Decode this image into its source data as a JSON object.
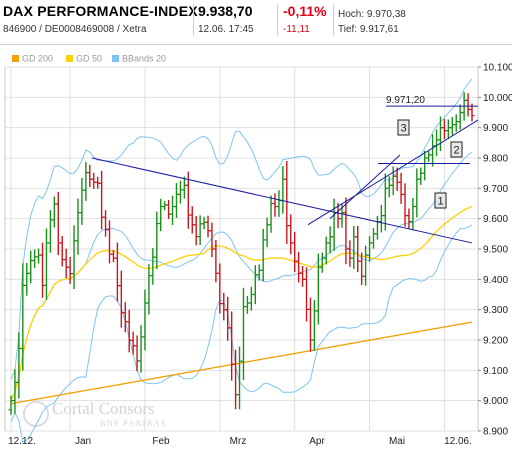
{
  "header": {
    "title": "DAX PERFORMANCE-INDEX",
    "subtitle": "846900 / DE0008469008 / Xetra",
    "price": "9.938,70",
    "datetime": "12.06. 17:45",
    "change_pct": "-0,11%",
    "change_abs": "-11,11",
    "high": "Hoch: 9.970,38",
    "low": "Tief: 9.917,61"
  },
  "legend": [
    {
      "label": "GD 200",
      "color": "#f0a000"
    },
    {
      "label": "GD 50",
      "color": "#ffd000"
    },
    {
      "label": "BBands 20",
      "color": "#7fc4f0"
    }
  ],
  "watermark": {
    "brand": "Cortal Consors",
    "sub": "BNP PARIBAS"
  },
  "chart_data": {
    "type": "ohlc",
    "ylim": [
      8900,
      10100
    ],
    "yticks": [
      "10.100",
      "10.000",
      "9.900",
      "9.800",
      "9.700",
      "9.600",
      "9.500",
      "9.400",
      "9.300",
      "9.200",
      "9.100",
      "9.000",
      "8.900"
    ],
    "xticks": [
      "12.12.",
      "Jan",
      "Feb",
      "Mrz",
      "Apr",
      "Mai",
      "12.06."
    ],
    "colors": {
      "up": "#1a8f1a",
      "down": "#c8161d",
      "gd200": "#f0a000",
      "gd50": "#ffd000",
      "bband": "#7fc4f0",
      "trend": "#1a1aa0"
    },
    "annotations": [
      "3",
      "2",
      "1"
    ],
    "level_label": "9.971,20",
    "closes": [
      9000,
      9060,
      9172,
      9380,
      9420,
      9462,
      9474,
      9480,
      9380,
      9520,
      9596,
      9648,
      9520,
      9465,
      9440,
      9419,
      9527,
      9620,
      9694,
      9752,
      9730,
      9720,
      9717,
      9605,
      9564,
      9483,
      9470,
      9379,
      9290,
      9260,
      9199,
      9181,
      9131,
      9210,
      9322,
      9412,
      9473,
      9584,
      9640,
      9645,
      9615,
      9640,
      9680,
      9695,
      9710,
      9612,
      9580,
      9541,
      9583,
      9588,
      9560,
      9500,
      9420,
      9320,
      9300,
      9240,
      9120,
      9020,
      9130,
      9310,
      9322,
      9350,
      9415,
      9430,
      9530,
      9580,
      9650,
      9640,
      9660,
      9730,
      9577,
      9520,
      9460,
      9420,
      9400,
      9301,
      9200,
      9296,
      9440,
      9470,
      9520,
      9540,
      9620,
      9600,
      9620,
      9500,
      9470,
      9540,
      9460,
      9410,
      9480,
      9520,
      9550,
      9590,
      9610,
      9700,
      9710,
      9740,
      9720,
      9680,
      9610,
      9590,
      9640,
      9730,
      9750,
      9800,
      9810,
      9840,
      9860,
      9900,
      9890,
      9900,
      9910,
      9920,
      9950,
      9990,
      9960,
      9940
    ]
  }
}
